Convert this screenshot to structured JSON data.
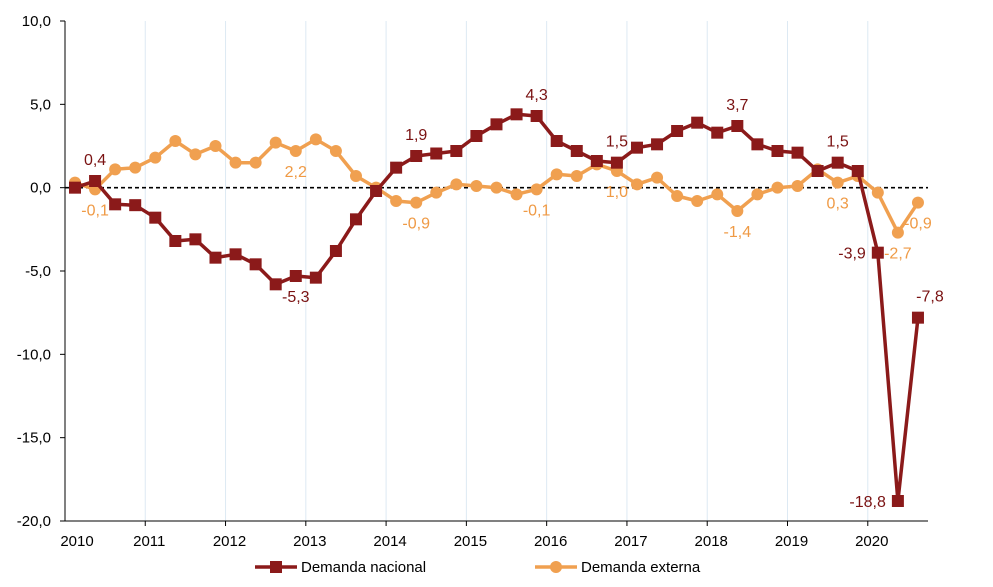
{
  "chart_data": {
    "type": "line",
    "title": "",
    "xlabel": "",
    "ylabel": "",
    "ylim": [
      -20,
      10
    ],
    "yticks": [
      "10,0",
      "5,0",
      "0,0",
      "-5,0",
      "-10,0",
      "-15,0",
      "-20,0"
    ],
    "ytick_values": [
      10,
      5,
      0,
      -5,
      -10,
      -15,
      -20
    ],
    "year_labels": [
      "2010",
      "2011",
      "2012",
      "2013",
      "2014",
      "2015",
      "2016",
      "2017",
      "2018",
      "2019",
      "2020"
    ],
    "x_start": 2010.0,
    "x_step": 0.25,
    "x_max": 2020.75,
    "grid": "vertical",
    "reference_line": 0,
    "legend_position": "bottom",
    "series": [
      {
        "name": "Demanda nacional",
        "color": "#8b1a1a",
        "marker": "square",
        "values": [
          0.0,
          0.4,
          -1.0,
          -1.05,
          -1.8,
          -3.2,
          -3.1,
          -4.2,
          -4.0,
          -4.6,
          -5.8,
          -5.3,
          -5.4,
          -3.8,
          -1.9,
          -0.2,
          1.2,
          1.9,
          2.05,
          2.2,
          3.1,
          3.8,
          4.4,
          4.3,
          2.8,
          2.2,
          1.6,
          1.5,
          2.4,
          2.6,
          3.4,
          3.9,
          3.3,
          3.7,
          2.6,
          2.2,
          2.1,
          1.0,
          1.5,
          1.0,
          -3.9,
          -18.8,
          -7.8
        ]
      },
      {
        "name": "Demanda externa",
        "color": "#f0a050",
        "marker": "circle",
        "values": [
          0.3,
          -0.1,
          1.1,
          1.2,
          1.8,
          2.8,
          2.0,
          2.5,
          1.5,
          1.5,
          2.7,
          2.2,
          2.9,
          2.2,
          0.7,
          0.0,
          -0.8,
          -0.9,
          -0.3,
          0.2,
          0.1,
          0.0,
          -0.4,
          -0.1,
          0.8,
          0.7,
          1.4,
          1.0,
          0.2,
          0.6,
          -0.5,
          -0.8,
          -0.4,
          -1.4,
          -0.4,
          0.0,
          0.1,
          1.1,
          0.3,
          0.7,
          -0.3,
          -2.7,
          -0.9
        ]
      }
    ],
    "data_labels": [
      {
        "series": 0,
        "index": 1,
        "text": "0,4",
        "pos": "above"
      },
      {
        "series": 1,
        "index": 1,
        "text": "-0,1",
        "pos": "below"
      },
      {
        "series": 0,
        "index": 11,
        "text": "-5,3",
        "pos": "below"
      },
      {
        "series": 1,
        "index": 11,
        "text": "2,2",
        "pos": "below"
      },
      {
        "series": 0,
        "index": 17,
        "text": "1,9",
        "pos": "above"
      },
      {
        "series": 1,
        "index": 17,
        "text": "-0,9",
        "pos": "below"
      },
      {
        "series": 0,
        "index": 23,
        "text": "4,3",
        "pos": "above"
      },
      {
        "series": 1,
        "index": 23,
        "text": "-0,1",
        "pos": "below"
      },
      {
        "series": 0,
        "index": 27,
        "text": "1,5",
        "pos": "above"
      },
      {
        "series": 1,
        "index": 27,
        "text": "1,0",
        "pos": "below"
      },
      {
        "series": 0,
        "index": 33,
        "text": "3,7",
        "pos": "above"
      },
      {
        "series": 1,
        "index": 33,
        "text": "-1,4",
        "pos": "below"
      },
      {
        "series": 0,
        "index": 38,
        "text": "1,5",
        "pos": "above"
      },
      {
        "series": 1,
        "index": 38,
        "text": "0,3",
        "pos": "below"
      },
      {
        "series": 0,
        "index": 40,
        "text": "-3,9",
        "pos": "left"
      },
      {
        "series": 0,
        "index": 41,
        "text": "-18,8",
        "pos": "left"
      },
      {
        "series": 1,
        "index": 41,
        "text": "-2,7",
        "pos": "below"
      },
      {
        "series": 0,
        "index": 42,
        "text": "-7,8",
        "pos": "above"
      },
      {
        "series": 1,
        "index": 42,
        "text": "-0,9",
        "pos": "below"
      }
    ]
  }
}
